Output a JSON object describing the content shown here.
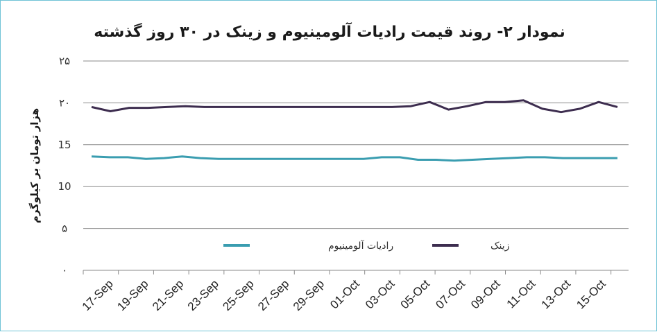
{
  "chart_data": {
    "type": "line",
    "title": "نمودار ۲- روند قیمت رادیات آلومینیوم و زینک در ۳۰ روز گذشته",
    "ylabel": "هزار تومان بر کیلوگرم",
    "xlabel": "",
    "ylim": [
      0,
      25
    ],
    "yticks": [
      "۰",
      "۵",
      "10",
      "15",
      "۲۰",
      "۲۵"
    ],
    "ytick_values": [
      0,
      5,
      10,
      15,
      20,
      25
    ],
    "xticks": [
      "17-Sep",
      "19-Sep",
      "21-Sep",
      "23-Sep",
      "25-Sep",
      "27-Sep",
      "29-Sep",
      "01-Oct",
      "03-Oct",
      "05-Oct",
      "07-Oct",
      "09-Oct",
      "11-Oct",
      "13-Oct",
      "15-Oct"
    ],
    "grid": true,
    "legend_position": "bottom-inside",
    "series": [
      {
        "name": "رادیات آلومینیوم",
        "color": "#3a9db0",
        "values": [
          13.6,
          13.5,
          13.5,
          13.3,
          13.4,
          13.6,
          13.4,
          13.3,
          13.3,
          13.3,
          13.3,
          13.3,
          13.3,
          13.3,
          13.3,
          13.3,
          13.5,
          13.5,
          13.2,
          13.2,
          13.1,
          13.2,
          13.3,
          13.4,
          13.5,
          13.5,
          13.4,
          13.4,
          13.4,
          13.4
        ]
      },
      {
        "name": "زینک",
        "color": "#3d2d4f",
        "values": [
          19.5,
          19.0,
          19.4,
          19.4,
          19.5,
          19.6,
          19.5,
          19.5,
          19.5,
          19.5,
          19.5,
          19.5,
          19.5,
          19.5,
          19.5,
          19.5,
          19.5,
          19.6,
          20.1,
          19.2,
          19.6,
          20.1,
          20.1,
          20.3,
          19.3,
          18.9,
          19.3,
          20.1,
          19.5
        ]
      }
    ]
  }
}
